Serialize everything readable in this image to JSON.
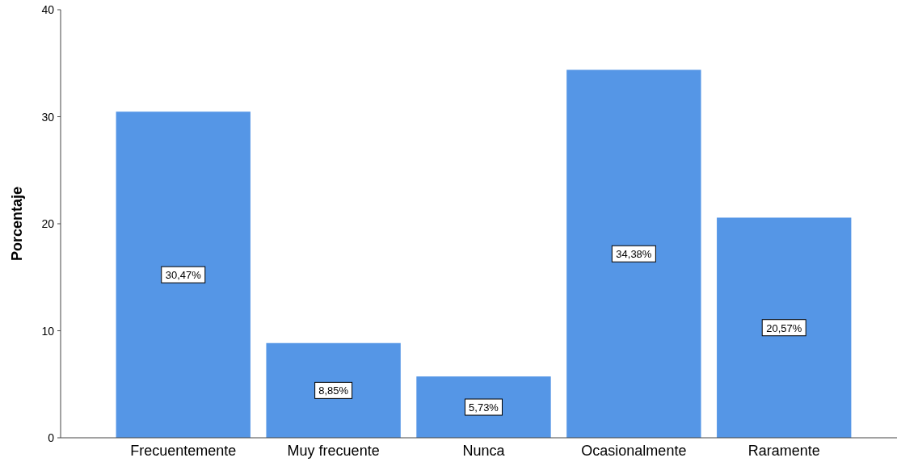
{
  "chart_data": {
    "type": "bar",
    "ylabel": "Porcentaje",
    "categories": [
      "Frecuentemente",
      "Muy frecuente",
      "Nunca",
      "Ocasionalmente",
      "Raramente"
    ],
    "values": [
      30.47,
      8.85,
      5.73,
      34.38,
      20.57
    ],
    "value_labels": [
      "30,47%",
      "8,85%",
      "5,73%",
      "34,38%",
      "20,57%"
    ],
    "color": "#5596e6",
    "ylim": [
      0,
      40
    ],
    "yticks": [
      0,
      10,
      20,
      30,
      40
    ],
    "grid": false
  }
}
